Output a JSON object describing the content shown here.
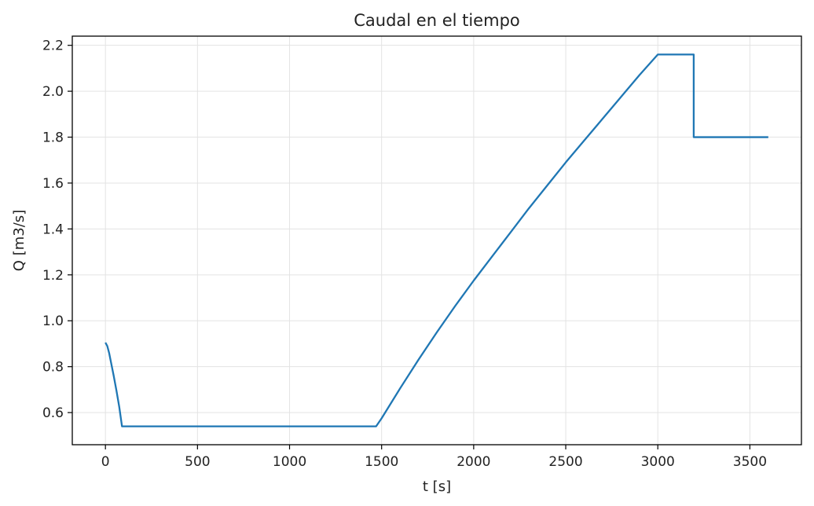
{
  "chart_data": {
    "type": "line",
    "title": "Caudal en el tiempo",
    "xlabel": "t [s]",
    "ylabel": "Q [m3/s]",
    "xlim": [
      -180,
      3780
    ],
    "ylim": [
      0.46,
      2.24
    ],
    "grid": true,
    "xticks": [
      0,
      500,
      1000,
      1500,
      2000,
      2500,
      3000,
      3500
    ],
    "yticks": [
      0.6,
      0.8,
      1.0,
      1.2,
      1.4,
      1.6,
      1.8,
      2.0,
      2.2
    ],
    "xtick_labels": [
      "0",
      "500",
      "1000",
      "1500",
      "2000",
      "2500",
      "3000",
      "3500"
    ],
    "ytick_labels": [
      "0.6",
      "0.8",
      "1.0",
      "1.2",
      "1.4",
      "1.6",
      "1.8",
      "2.0",
      "2.2"
    ],
    "colors": {
      "line": "#1f77b4",
      "grid": "#e3e3e3",
      "axis": "#000000"
    },
    "series": [
      {
        "values": [
          [
            0,
            0.905
          ],
          [
            10,
            0.89
          ],
          [
            20,
            0.86
          ],
          [
            30,
            0.82
          ],
          [
            45,
            0.76
          ],
          [
            60,
            0.695
          ],
          [
            75,
            0.625
          ],
          [
            90,
            0.54
          ],
          [
            1470,
            0.54
          ],
          [
            1500,
            0.575
          ],
          [
            1600,
            0.705
          ],
          [
            1700,
            0.83
          ],
          [
            1800,
            0.95
          ],
          [
            1900,
            1.065
          ],
          [
            2000,
            1.175
          ],
          [
            2100,
            1.28
          ],
          [
            2200,
            1.385
          ],
          [
            2300,
            1.49
          ],
          [
            2400,
            1.59
          ],
          [
            2500,
            1.69
          ],
          [
            2600,
            1.785
          ],
          [
            2700,
            1.88
          ],
          [
            2800,
            1.975
          ],
          [
            2900,
            2.07
          ],
          [
            3000,
            2.16
          ],
          [
            3195,
            2.16
          ],
          [
            3195,
            1.8
          ],
          [
            3600,
            1.8
          ]
        ]
      }
    ]
  }
}
